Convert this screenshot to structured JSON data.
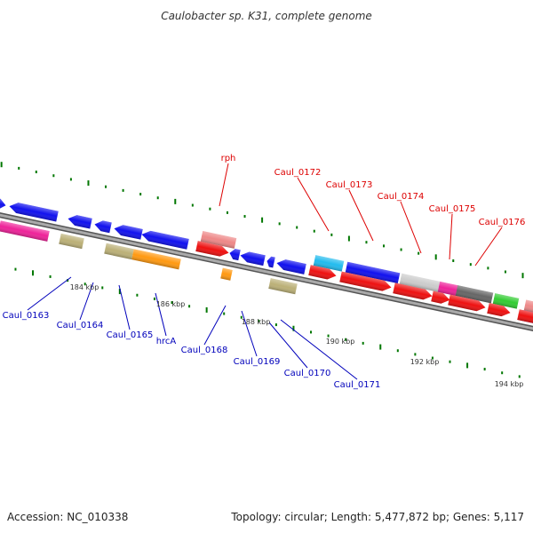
{
  "title": "Caulobacter sp. K31, complete genome",
  "footer": {
    "accession": "Accession: NC_010338",
    "summary": "Topology: circular; Length: 5,477,872 bp; Genes: 5,117"
  },
  "scale_labels": [
    "184 kbp",
    "186 kbp",
    "188 kbp",
    "190 kbp",
    "192 kbp",
    "194 kbp"
  ],
  "genes_top": [
    "rph",
    "Caul_0172",
    "Caul_0173",
    "Caul_0174",
    "Caul_0175",
    "Caul_0176"
  ],
  "genes_bottom": [
    "Caul_0163",
    "Caul_0164",
    "Caul_0165",
    "hrcA",
    "Caul_0168",
    "Caul_0169",
    "Caul_0170",
    "Caul_0171"
  ],
  "colors": {
    "backbone": "#888888",
    "forward_label": "#dd0000",
    "reverse_label": "#0000bb",
    "scale_tick": "#007700",
    "blue": "#1111ee",
    "red": "#ee1111",
    "pink": "#ee2299",
    "khaki": "#bbb077",
    "orange": "#ff9911",
    "salmon": "#ee8888",
    "cyan": "#22bbee",
    "lightgray": "#cccccc",
    "darkgray": "#666666",
    "green": "#33cc33"
  }
}
